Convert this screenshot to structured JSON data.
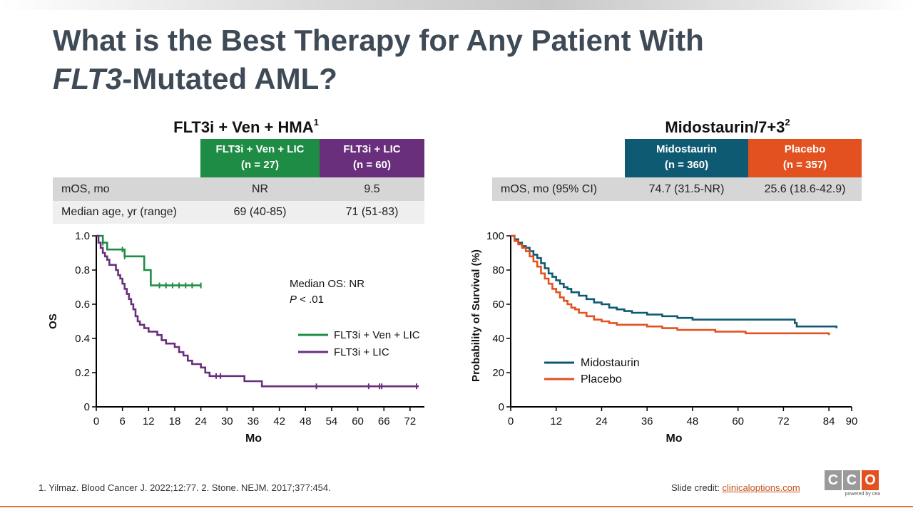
{
  "title": {
    "line1": "What is the Best Therapy for Any Patient With",
    "line2_italic": "FLT3",
    "line2_rest": "-Mutated AML?"
  },
  "left": {
    "panel_title": "FLT3i + Ven + HMA",
    "panel_title_sup": "1",
    "headers": [
      {
        "line1": "FLT3i + Ven + LIC",
        "line2": "(n = 27)",
        "color": "#1e8c45"
      },
      {
        "line1": "FLT3i + LIC",
        "line2": "(n = 60)",
        "color": "#6a2f7c"
      }
    ],
    "rows": [
      {
        "label": "mOS, mo",
        "values": [
          "NR",
          "9.5"
        ]
      },
      {
        "label": "Median age, yr (range)",
        "values": [
          "69 (40-85)",
          "71 (51-83)"
        ]
      }
    ]
  },
  "right": {
    "panel_title": "Midostaurin/7+3",
    "panel_title_sup": "2",
    "headers": [
      {
        "line1": "Midostaurin",
        "line2": "(n = 360)",
        "color": "#0f5a73"
      },
      {
        "line1": "Placebo",
        "line2": "(n = 357)",
        "color": "#e2511f"
      }
    ],
    "rows": [
      {
        "label": "mOS, mo (95% CI)",
        "values": [
          "74.7 (31.5-NR)",
          "25.6 (18.6-42.9)"
        ]
      }
    ]
  },
  "chart_data": [
    {
      "type": "line",
      "xlabel": "Mo",
      "ylabel": "OS",
      "xlim": [
        0,
        75
      ],
      "ylim": [
        0,
        1.0
      ],
      "xticks": [
        0,
        6,
        12,
        18,
        24,
        30,
        36,
        42,
        48,
        54,
        60,
        66,
        72
      ],
      "yticks": [
        "0",
        "0.2",
        "0.4",
        "0.6",
        "0.8",
        "1.0"
      ],
      "annotation": {
        "line1": "Median OS: NR",
        "line2_italic": "P",
        "line2_rest": " < .01"
      },
      "series": [
        {
          "name": "FLT3i + Ven + LIC",
          "color": "#1e8c45",
          "points": [
            [
              0,
              1.0
            ],
            [
              1,
              1.0
            ],
            [
              1.5,
              0.96
            ],
            [
              2.5,
              0.92
            ],
            [
              5,
              0.92
            ],
            [
              6.5,
              0.88
            ],
            [
              11,
              0.8
            ],
            [
              12.5,
              0.71
            ],
            [
              24,
              0.71
            ]
          ]
        },
        {
          "name": "FLT3i + LIC",
          "color": "#6a2f7c",
          "points": [
            [
              0,
              1.0
            ],
            [
              0.5,
              0.96
            ],
            [
              1,
              0.93
            ],
            [
              1.5,
              0.9
            ],
            [
              2,
              0.88
            ],
            [
              2.5,
              0.86
            ],
            [
              3,
              0.83
            ],
            [
              4.5,
              0.8
            ],
            [
              5,
              0.77
            ],
            [
              5.5,
              0.75
            ],
            [
              6,
              0.72
            ],
            [
              6.5,
              0.69
            ],
            [
              7,
              0.66
            ],
            [
              7.5,
              0.63
            ],
            [
              8,
              0.6
            ],
            [
              8.5,
              0.57
            ],
            [
              9,
              0.53
            ],
            [
              9.5,
              0.5
            ],
            [
              10,
              0.48
            ],
            [
              11,
              0.46
            ],
            [
              12,
              0.44
            ],
            [
              14,
              0.42
            ],
            [
              15,
              0.39
            ],
            [
              16,
              0.37
            ],
            [
              18,
              0.35
            ],
            [
              19,
              0.32
            ],
            [
              20,
              0.3
            ],
            [
              21,
              0.27
            ],
            [
              22,
              0.25
            ],
            [
              24,
              0.23
            ],
            [
              25,
              0.2
            ],
            [
              26,
              0.18
            ],
            [
              34,
              0.15
            ],
            [
              38,
              0.12
            ],
            [
              74,
              0.12
            ]
          ]
        }
      ]
    },
    {
      "type": "line",
      "xlabel": "Mo",
      "ylabel": "Probability of Survival (%)",
      "xlim": [
        0,
        90
      ],
      "ylim": [
        0,
        100
      ],
      "xticks": [
        0,
        12,
        24,
        36,
        48,
        60,
        72,
        84,
        90
      ],
      "yticks": [
        "0",
        "20",
        "40",
        "60",
        "80",
        "100"
      ],
      "series": [
        {
          "name": "Midostaurin",
          "color": "#0f5a73",
          "points": [
            [
              0,
              100
            ],
            [
              1,
              98
            ],
            [
              2,
              96
            ],
            [
              3,
              94
            ],
            [
              4,
              93
            ],
            [
              5,
              91
            ],
            [
              6,
              89
            ],
            [
              7,
              87
            ],
            [
              8,
              84
            ],
            [
              9,
              81
            ],
            [
              10,
              78
            ],
            [
              11,
              76
            ],
            [
              12,
              74
            ],
            [
              13,
              72
            ],
            [
              14,
              70
            ],
            [
              15,
              69
            ],
            [
              16,
              67
            ],
            [
              18,
              65
            ],
            [
              20,
              63
            ],
            [
              22,
              61
            ],
            [
              24,
              60
            ],
            [
              26,
              58
            ],
            [
              28,
              57
            ],
            [
              30,
              56
            ],
            [
              32,
              55
            ],
            [
              36,
              54
            ],
            [
              40,
              53
            ],
            [
              44,
              52
            ],
            [
              48,
              51
            ],
            [
              56,
              51
            ],
            [
              64,
              51
            ],
            [
              70,
              51
            ],
            [
              75,
              49
            ],
            [
              75.5,
              47
            ],
            [
              86,
              46
            ]
          ]
        },
        {
          "name": "Placebo",
          "color": "#e2511f",
          "points": [
            [
              0,
              100
            ],
            [
              1,
              97
            ],
            [
              2,
              95
            ],
            [
              3,
              93
            ],
            [
              4,
              91
            ],
            [
              5,
              88
            ],
            [
              6,
              85
            ],
            [
              7,
              82
            ],
            [
              8,
              78
            ],
            [
              9,
              75
            ],
            [
              10,
              72
            ],
            [
              11,
              69
            ],
            [
              12,
              67
            ],
            [
              13,
              64
            ],
            [
              14,
              62
            ],
            [
              15,
              60
            ],
            [
              16,
              58
            ],
            [
              17,
              57
            ],
            [
              18,
              55
            ],
            [
              20,
              53
            ],
            [
              22,
              51
            ],
            [
              24,
              50
            ],
            [
              26,
              49
            ],
            [
              28,
              48
            ],
            [
              32,
              48
            ],
            [
              36,
              47
            ],
            [
              40,
              46
            ],
            [
              44,
              45
            ],
            [
              48,
              45
            ],
            [
              54,
              44
            ],
            [
              62,
              43
            ],
            [
              70,
              43
            ],
            [
              84,
              42
            ]
          ]
        }
      ]
    }
  ],
  "footer": {
    "refs": "1. Yilmaz. Blood Cancer J. 2022;12:77. 2. Stone. NEJM. 2017;377:454.",
    "credit_prefix": "Slide credit: ",
    "credit_link": "clinicaloptions.com",
    "logo_letters": [
      "C",
      "C",
      "O"
    ],
    "logo_colors": [
      "#9a9a9a",
      "#9a9a9a",
      "#e2511f"
    ],
    "logo_sub": "powered by cea"
  }
}
